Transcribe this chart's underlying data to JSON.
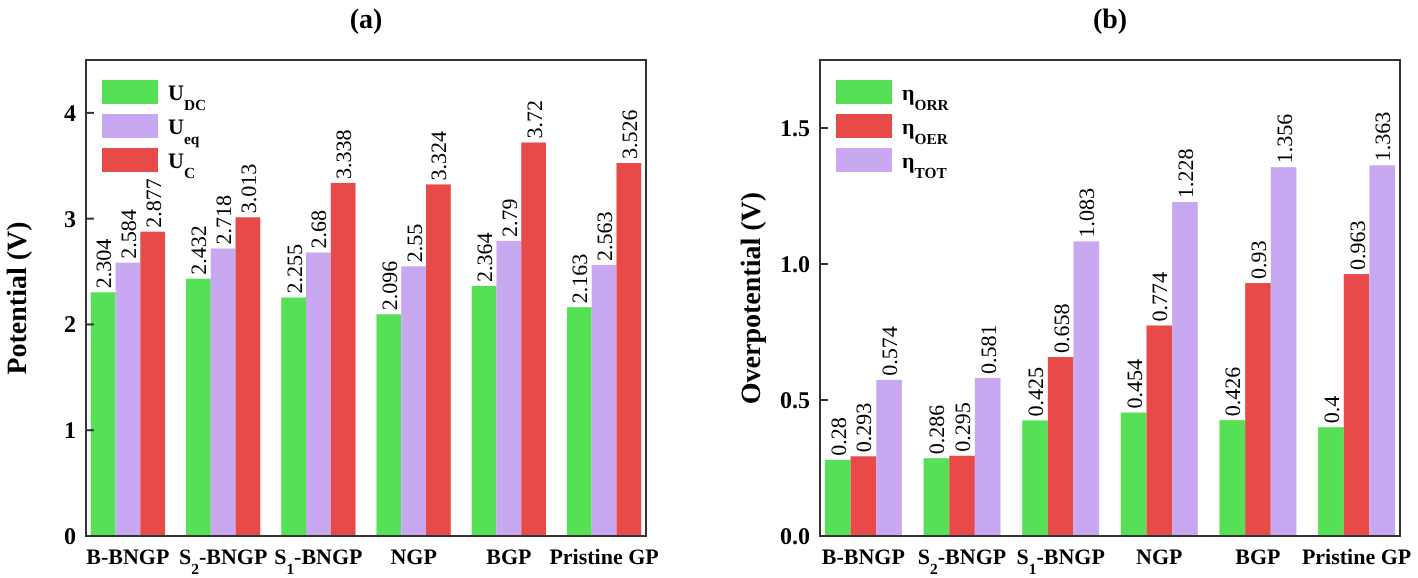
{
  "chart_data": [
    {
      "type": "bar",
      "title": "(a)",
      "ylabel": "Potential (V)",
      "categories": [
        "B-BNGP",
        "S$_{2}$-BNGP",
        "S$_{1}$-BNGP",
        "NGP",
        "BGP",
        "Pristine GP"
      ],
      "series": [
        {
          "name": "U$_{DC}$",
          "color": "#55e055",
          "values": [
            2.304,
            2.432,
            2.255,
            2.096,
            2.364,
            2.163
          ]
        },
        {
          "name": "U$_{eq}$",
          "color": "#c8a8f0",
          "values": [
            2.584,
            2.718,
            2.68,
            2.55,
            2.79,
            2.563
          ]
        },
        {
          "name": "U$_{C}$",
          "color": "#e84a4a",
          "values": [
            2.877,
            3.013,
            3.338,
            3.324,
            3.72,
            3.526
          ]
        }
      ],
      "ylim": [
        0,
        4.5
      ],
      "yticks": [
        0,
        1,
        2,
        3,
        4
      ],
      "legend": "top left",
      "data_labels": true,
      "grid": false
    },
    {
      "type": "bar",
      "title": "(b)",
      "ylabel": "Overpotential (V)",
      "categories": [
        "B-BNGP",
        "S$_{2}$-BNGP",
        "S$_{1}$-BNGP",
        "NGP",
        "BGP",
        "Pristine GP"
      ],
      "series": [
        {
          "name": "η$_{ORR}$",
          "color": "#55e055",
          "values": [
            0.28,
            0.286,
            0.425,
            0.454,
            0.426,
            0.4
          ]
        },
        {
          "name": "η$_{OER}$",
          "color": "#e84a4a",
          "values": [
            0.293,
            0.295,
            0.658,
            0.774,
            0.93,
            0.963
          ]
        },
        {
          "name": "η$_{TOT}$",
          "color": "#c8a8f0",
          "values": [
            0.574,
            0.581,
            1.083,
            1.228,
            1.356,
            1.363
          ]
        }
      ],
      "ylim": [
        0,
        1.75
      ],
      "yticks": [
        {
          "value": 0,
          "label": "0.0"
        },
        {
          "value": 0.5,
          "label": "0.5"
        },
        {
          "value": 1,
          "label": "1.0"
        },
        {
          "value": 1.5,
          "label": "1.5"
        }
      ],
      "legend": "top left",
      "data_labels": true,
      "grid": false
    }
  ]
}
